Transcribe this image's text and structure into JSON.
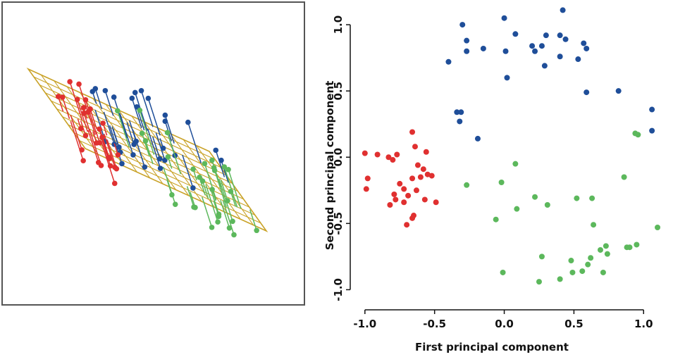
{
  "colors": {
    "blue": "#1f4e99",
    "red": "#e03030",
    "green": "#5cb85c",
    "plane": "#c9a227",
    "frame": "#555555",
    "axis": "#111111"
  },
  "chart_data": [
    {
      "type": "scatter",
      "view": "3d-projection-onto-plane",
      "title": "",
      "series": [
        {
          "color": "blue"
        },
        {
          "color": "red"
        },
        {
          "color": "green"
        }
      ]
    },
    {
      "type": "scatter",
      "title": "",
      "xlabel": "First principal component",
      "ylabel": "Second principal component",
      "xlim": [
        -1.08,
        1.12
      ],
      "ylim": [
        -1.12,
        1.16
      ],
      "xticks": [
        -1.0,
        -0.5,
        0.0,
        0.5,
        1.0
      ],
      "xtick_labels": [
        "-1.0",
        "-0.5",
        "0.0",
        "0.5",
        "1.0"
      ],
      "yticks": [
        -1.0,
        -0.5,
        0.0,
        0.5,
        1.0
      ],
      "ytick_labels": [
        "-1.0",
        "-0.5",
        "0.0",
        "0.5",
        "1.0"
      ],
      "grid": false,
      "legend": "none",
      "series": [
        {
          "color": "blue",
          "points": [
            [
              0.0,
              1.05
            ],
            [
              -0.3,
              1.0
            ],
            [
              0.42,
              1.11
            ],
            [
              -0.27,
              0.88
            ],
            [
              0.08,
              0.93
            ],
            [
              0.3,
              0.92
            ],
            [
              0.4,
              0.92
            ],
            [
              -0.15,
              0.82
            ],
            [
              0.2,
              0.84
            ],
            [
              0.27,
              0.84
            ],
            [
              0.44,
              0.89
            ],
            [
              0.57,
              0.86
            ],
            [
              0.59,
              0.82
            ],
            [
              -0.27,
              0.8
            ],
            [
              0.01,
              0.8
            ],
            [
              0.4,
              0.76
            ],
            [
              0.22,
              0.8
            ],
            [
              0.53,
              0.74
            ],
            [
              -0.4,
              0.72
            ],
            [
              0.29,
              0.69
            ],
            [
              0.02,
              0.6
            ],
            [
              0.59,
              0.49
            ],
            [
              0.82,
              0.5
            ],
            [
              -0.34,
              0.34
            ],
            [
              -0.31,
              0.34
            ],
            [
              -0.32,
              0.27
            ],
            [
              1.06,
              0.36
            ],
            [
              1.06,
              0.2
            ],
            [
              -0.19,
              0.14
            ]
          ]
        },
        {
          "color": "red",
          "points": [
            [
              -1.0,
              0.03
            ],
            [
              -0.91,
              0.02
            ],
            [
              -0.83,
              0.0
            ],
            [
              -0.8,
              -0.02
            ],
            [
              -0.77,
              0.02
            ],
            [
              -0.66,
              0.19
            ],
            [
              -0.64,
              0.08
            ],
            [
              -0.56,
              0.04
            ],
            [
              -0.62,
              -0.06
            ],
            [
              -0.58,
              -0.09
            ],
            [
              -0.55,
              -0.13
            ],
            [
              -0.52,
              -0.14
            ],
            [
              -0.6,
              -0.15
            ],
            [
              -0.66,
              -0.16
            ],
            [
              -0.75,
              -0.2
            ],
            [
              -0.72,
              -0.24
            ],
            [
              -0.63,
              -0.25
            ],
            [
              -0.79,
              -0.28
            ],
            [
              -0.69,
              -0.29
            ],
            [
              -0.57,
              -0.32
            ],
            [
              -0.49,
              -0.34
            ],
            [
              -0.82,
              -0.36
            ],
            [
              -0.78,
              -0.32
            ],
            [
              -0.72,
              -0.34
            ],
            [
              -0.65,
              -0.44
            ],
            [
              -0.66,
              -0.46
            ],
            [
              -0.7,
              -0.51
            ],
            [
              -0.99,
              -0.24
            ],
            [
              -0.98,
              -0.16
            ]
          ]
        },
        {
          "color": "green",
          "points": [
            [
              0.08,
              -0.05
            ],
            [
              -0.27,
              -0.21
            ],
            [
              -0.02,
              -0.19
            ],
            [
              0.94,
              0.18
            ],
            [
              0.96,
              0.17
            ],
            [
              0.86,
              -0.15
            ],
            [
              0.22,
              -0.3
            ],
            [
              0.31,
              -0.36
            ],
            [
              0.52,
              -0.31
            ],
            [
              0.63,
              -0.31
            ],
            [
              0.09,
              -0.39
            ],
            [
              -0.06,
              -0.47
            ],
            [
              0.64,
              -0.51
            ],
            [
              1.1,
              -0.53
            ],
            [
              0.95,
              -0.66
            ],
            [
              0.88,
              -0.68
            ],
            [
              0.9,
              -0.68
            ],
            [
              0.73,
              -0.67
            ],
            [
              0.69,
              -0.7
            ],
            [
              0.74,
              -0.73
            ],
            [
              0.27,
              -0.75
            ],
            [
              0.62,
              -0.76
            ],
            [
              0.48,
              -0.78
            ],
            [
              0.6,
              -0.81
            ],
            [
              0.56,
              -0.86
            ],
            [
              0.71,
              -0.87
            ],
            [
              0.49,
              -0.87
            ],
            [
              -0.01,
              -0.87
            ],
            [
              0.4,
              -0.92
            ],
            [
              0.25,
              -0.94
            ]
          ]
        }
      ]
    }
  ]
}
